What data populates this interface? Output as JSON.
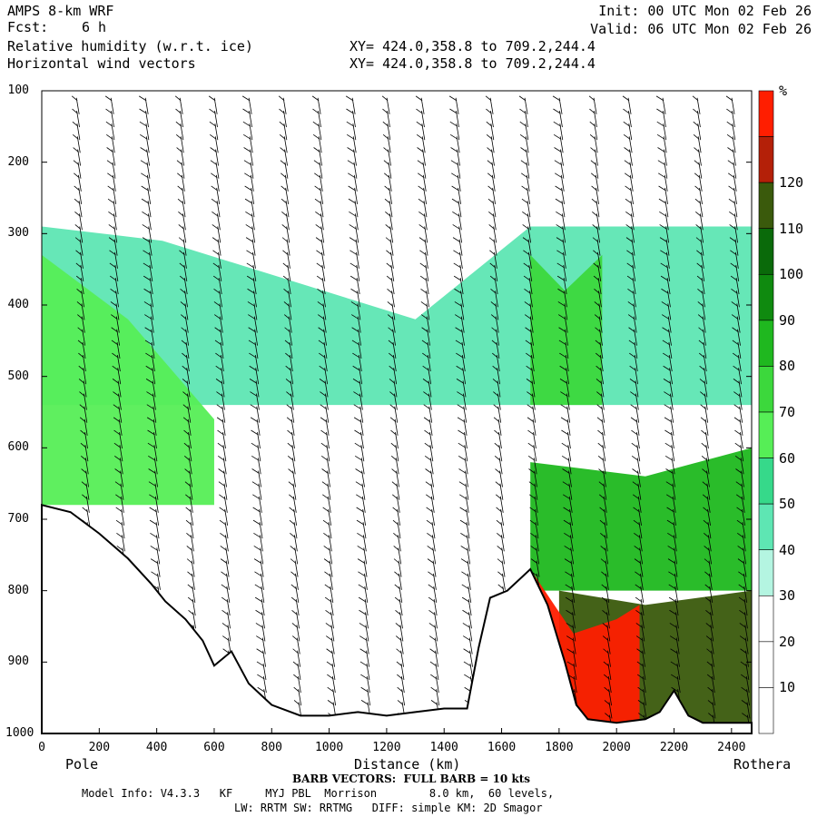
{
  "header": {
    "title": "AMPS 8-km WRF",
    "forecast_label": "Fcst:",
    "forecast_value": "6 h",
    "field1": "Relative humidity (w.r.t. ice)",
    "field2": "Horizontal wind vectors",
    "init": "Init: 00 UTC Mon 02 Feb 26",
    "valid": "Valid: 06 UTC Mon 02 Feb 26",
    "xy1": "XY= 424.0,358.8 to 709.2,244.4",
    "xy2": "XY= 424.0,358.8 to 709.2,244.4"
  },
  "chart_data": {
    "type": "heatmap",
    "title": "Relative humidity (w.r.t. ice)",
    "overlay": "Horizontal wind vectors",
    "xlabel": "Distance (km)",
    "ylabel": "",
    "xlim": [
      0,
      2470
    ],
    "ylim": [
      1000,
      100
    ],
    "x_ticks": [
      0,
      200,
      400,
      600,
      800,
      1000,
      1200,
      1400,
      1600,
      1800,
      2000,
      2200,
      2400
    ],
    "y_ticks": [
      100,
      200,
      300,
      400,
      500,
      600,
      700,
      800,
      900,
      1000
    ],
    "x_end_labels": {
      "left": "Pole",
      "right": "Rothera"
    },
    "colorbar": {
      "unit": "%",
      "levels": [
        10,
        20,
        30,
        40,
        50,
        60,
        70,
        80,
        90,
        100,
        110,
        120
      ],
      "colors": [
        "#ffffff",
        "#ffffff",
        "#ffffff",
        "#b4f5e1",
        "#5ee6b3",
        "#36d98a",
        "#56ee56",
        "#3cd83c",
        "#1fb81f",
        "#0f8a0f",
        "#0a6a0a",
        "#3a5a0c",
        "#b42008",
        "#ff1e00"
      ]
    },
    "terrain_surface": [
      [
        0,
        680
      ],
      [
        100,
        690
      ],
      [
        200,
        720
      ],
      [
        300,
        755
      ],
      [
        380,
        790
      ],
      [
        430,
        815
      ],
      [
        500,
        840
      ],
      [
        560,
        870
      ],
      [
        600,
        905
      ],
      [
        660,
        885
      ],
      [
        720,
        930
      ],
      [
        800,
        960
      ],
      [
        900,
        975
      ],
      [
        1000,
        975
      ],
      [
        1100,
        970
      ],
      [
        1200,
        975
      ],
      [
        1300,
        970
      ],
      [
        1400,
        965
      ],
      [
        1480,
        965
      ],
      [
        1520,
        880
      ],
      [
        1560,
        810
      ],
      [
        1620,
        800
      ],
      [
        1700,
        770
      ],
      [
        1760,
        820
      ],
      [
        1820,
        900
      ],
      [
        1860,
        960
      ],
      [
        1900,
        980
      ],
      [
        2000,
        985
      ],
      [
        2100,
        980
      ],
      [
        2150,
        970
      ],
      [
        2200,
        940
      ],
      [
        2250,
        975
      ],
      [
        2300,
        985
      ],
      [
        2400,
        985
      ],
      [
        2470,
        985
      ]
    ],
    "rh_regions": [
      {
        "level": 35,
        "x": [
          0,
          420,
          1300,
          1700,
          2470
        ],
        "p": [
          290,
          310,
          420,
          290,
          290
        ]
      },
      {
        "level": 55,
        "x": [
          0,
          300,
          600
        ],
        "p": [
          330,
          420,
          560
        ]
      },
      {
        "level": 65,
        "x": [
          1700,
          1820,
          1950
        ],
        "p": [
          330,
          380,
          330
        ]
      },
      {
        "level": 75,
        "x": [
          1700,
          2100,
          2470
        ],
        "p": [
          620,
          640,
          600
        ]
      },
      {
        "level": 105,
        "x": [
          1800,
          2100,
          2470
        ],
        "p": [
          800,
          820,
          800
        ]
      },
      {
        "level": 125,
        "x": [
          1700,
          1850,
          2000,
          2080
        ],
        "p": [
          770,
          860,
          840,
          820
        ]
      }
    ],
    "wind_barb_columns_km": [
      120,
      240,
      360,
      480,
      600,
      720,
      840,
      960,
      1080,
      1200,
      1320,
      1440,
      1560,
      1680,
      1800,
      1920,
      2040,
      2160,
      2280,
      2400
    ]
  },
  "footer": {
    "barb": "BARB VECTORS:  FULL BARB = 10 kts",
    "model1": "Model Info: V4.3.3   KF     MYJ PBL  Morrison        8.0 km,  60 levels,",
    "model2": "LW: RRTM SW: RRTMG   DIFF: simple KM: 2D Smagor"
  }
}
